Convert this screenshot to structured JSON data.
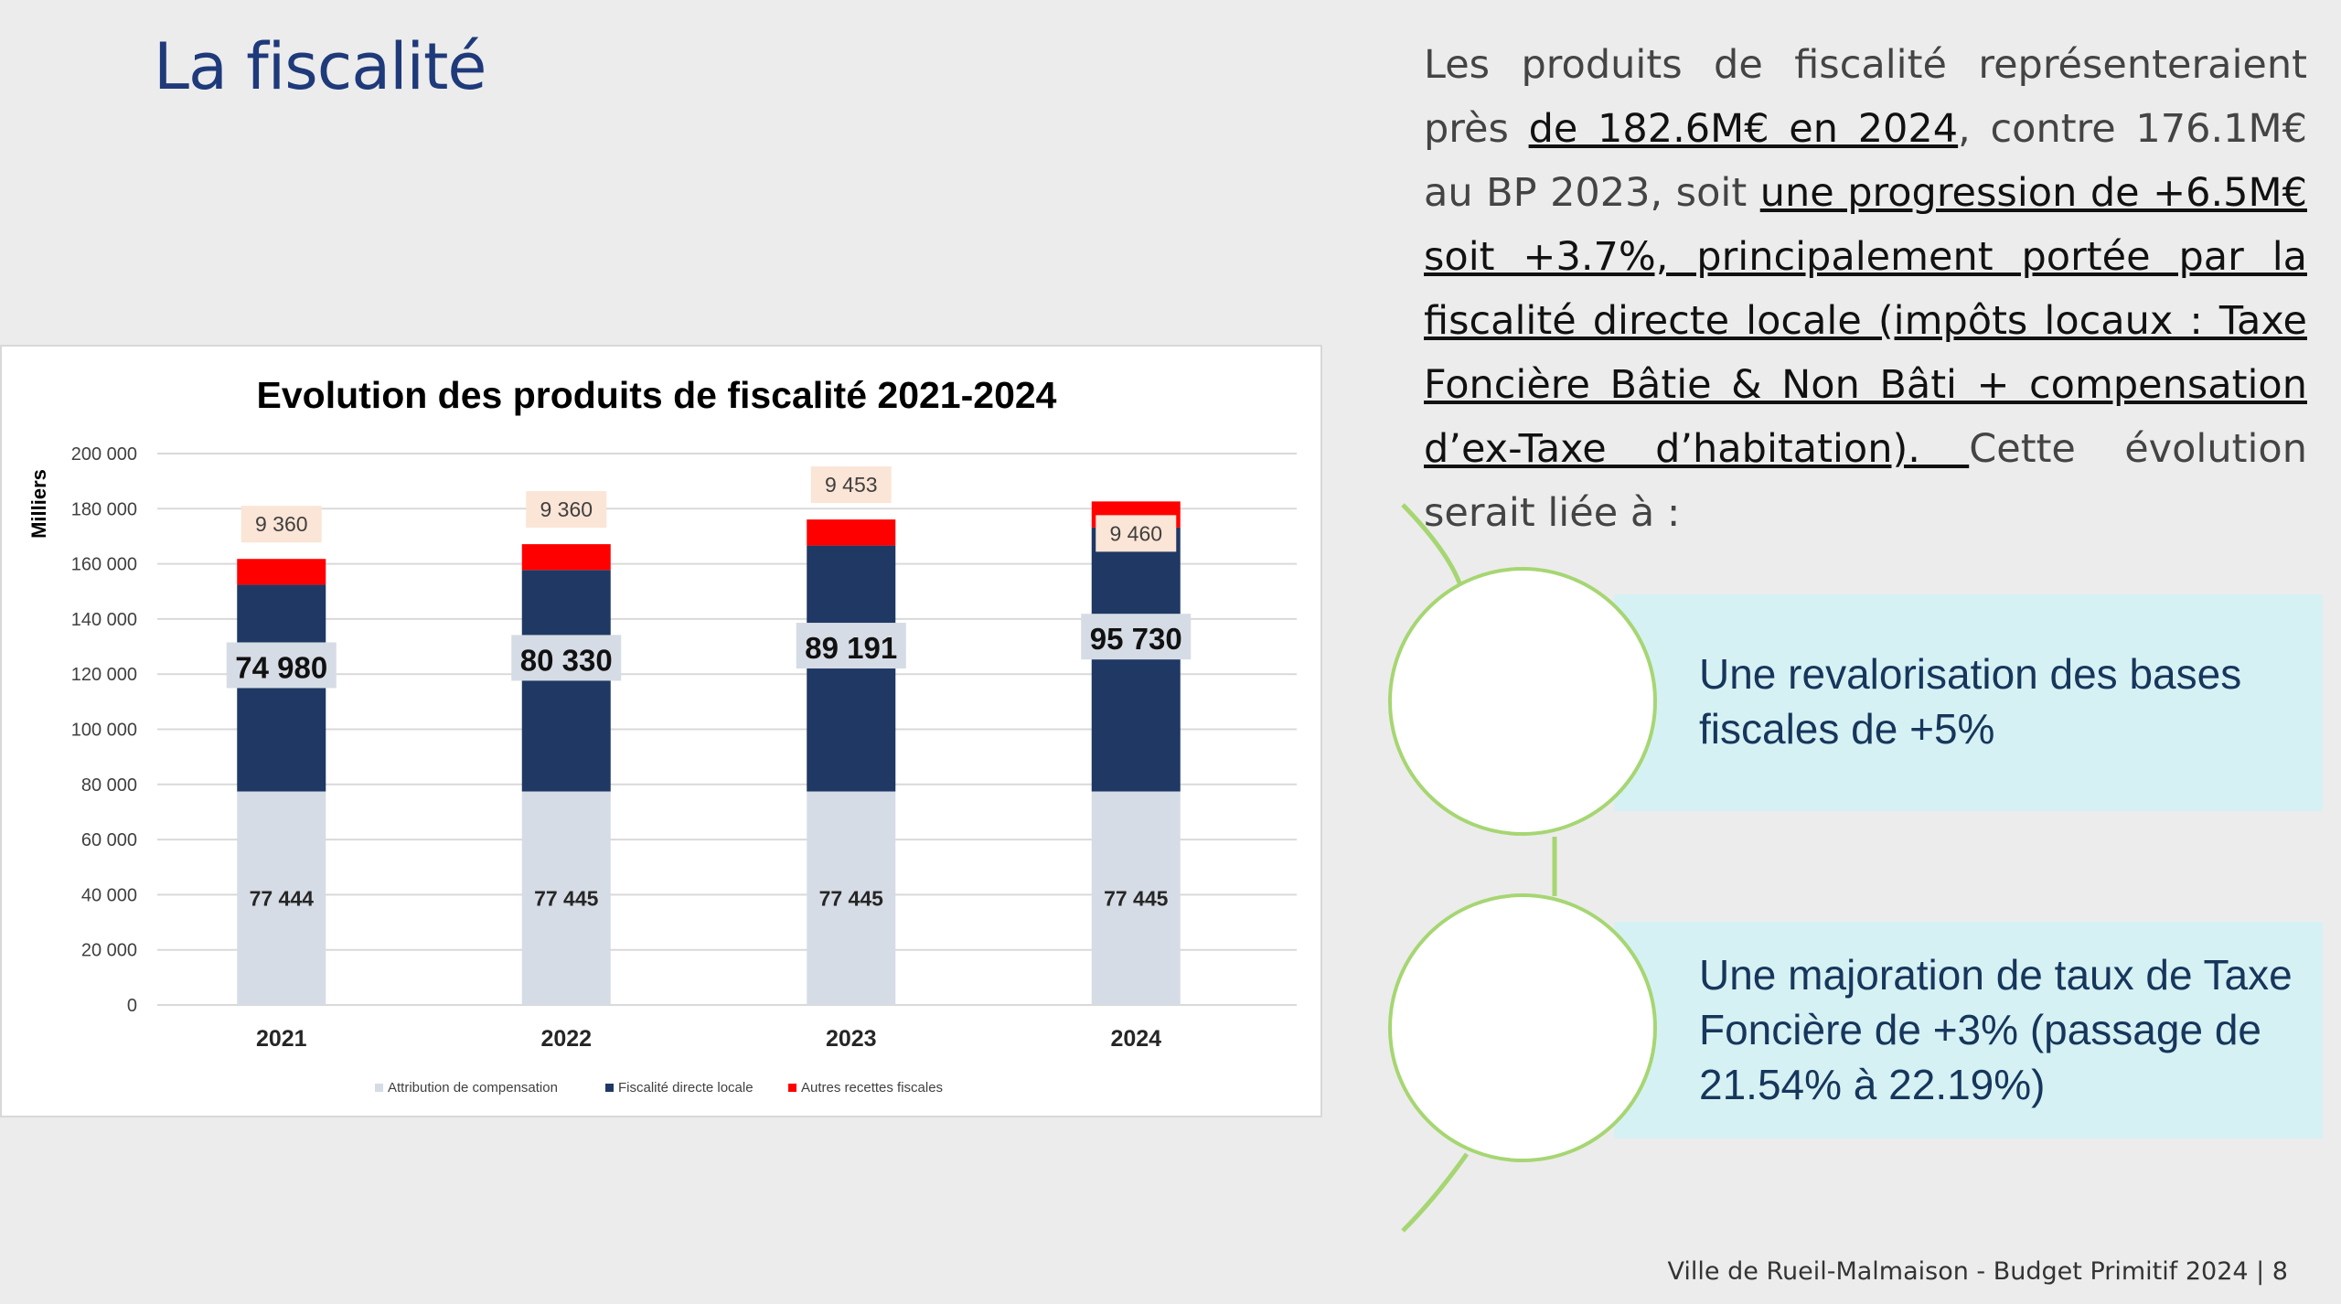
{
  "slide": {
    "title": "La fiscalité",
    "footer": "Ville de Rueil-Malmaison - Budget Primitif 2024 | 8"
  },
  "body": {
    "p1": "Les produits de fiscalité représenteraient près ",
    "u1": "de 182.6M€ en 2024",
    "p2": ", contre 176.1M€ au BP 2023, soit ",
    "u2": "une progression de +6.5M€ soit +3.7%, principalement portée par la fiscalité directe locale (impôts locaux : Taxe Foncière Bâtie & Non Bâti + compensation d’ex-Taxe d’habitation). ",
    "p3": "Cette évolution serait liée à :"
  },
  "points": [
    {
      "text": "Une revalorisation des bases fiscales de +5%"
    },
    {
      "text": "Une majoration de taux de Taxe Foncière de +3% (passage de 21.54% à 22.19%)"
    }
  ],
  "colors": {
    "attribution": "#d6dce5",
    "fiscalite": "#1f3864",
    "autres": "#ff0000",
    "accent_green": "#a6d672",
    "box_bg": "#d6f1f4"
  },
  "chart_data": {
    "type": "bar",
    "stacked": true,
    "title": "Evolution des produits de fiscalité 2021-2024",
    "ylabel": "Milliers",
    "ylim": [
      0,
      200000
    ],
    "yticks": [
      0,
      20000,
      40000,
      60000,
      80000,
      100000,
      120000,
      140000,
      160000,
      180000,
      200000
    ],
    "ytick_labels": [
      "0",
      "20 000",
      "40 000",
      "60 000",
      "80 000",
      "100 000",
      "120 000",
      "140 000",
      "160 000",
      "180 000",
      "200 000"
    ],
    "categories": [
      "2021",
      "2022",
      "2023",
      "2024"
    ],
    "series": [
      {
        "name": "Attribution de compensation",
        "values": [
          77444,
          77445,
          77445,
          77445
        ],
        "labels": [
          "77 444",
          "77 445",
          "77 445",
          "77 445"
        ]
      },
      {
        "name": "Fiscalité directe locale",
        "values": [
          74980,
          80330,
          89191,
          95730
        ],
        "labels": [
          "74 980",
          "80 330",
          "89 191",
          "95 730"
        ]
      },
      {
        "name": "Autres recettes fiscales",
        "values": [
          9360,
          9360,
          9453,
          9460
        ],
        "labels": [
          "9 360",
          "9 360",
          "9 453",
          "9 460"
        ]
      }
    ]
  }
}
